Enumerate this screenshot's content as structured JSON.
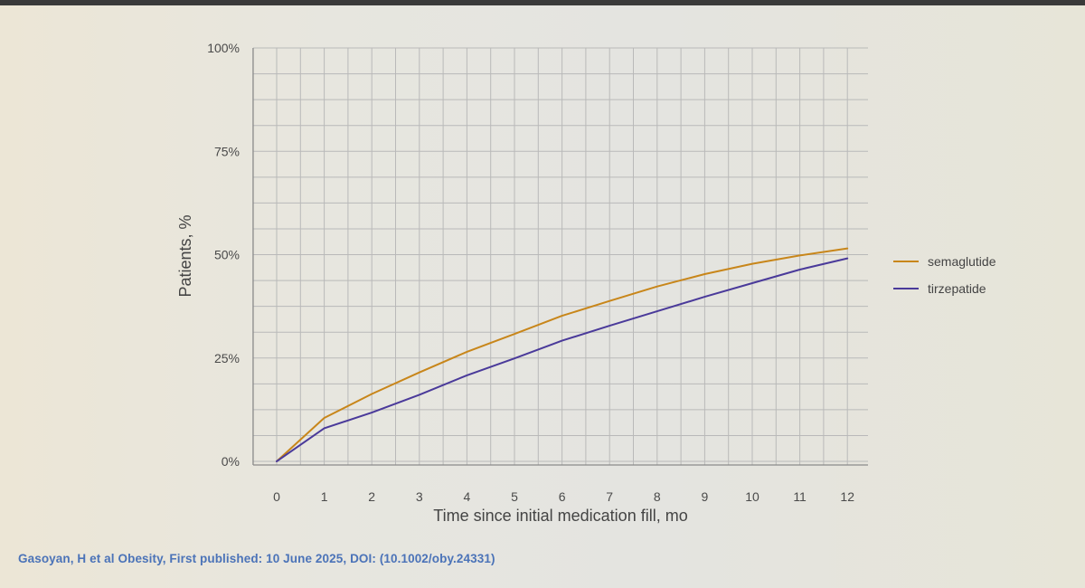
{
  "chart_data": {
    "type": "line",
    "xlabel": "Time since initial medication fill, mo",
    "ylabel": "Patients, %",
    "x": [
      0,
      1,
      2,
      3,
      4,
      5,
      6,
      7,
      8,
      9,
      10,
      11,
      12
    ],
    "x_tick_labels": [
      "0",
      "1",
      "2",
      "3",
      "4",
      "5",
      "6",
      "7",
      "8",
      "9",
      "10",
      "11",
      "12"
    ],
    "y_ticks": [
      0,
      25,
      50,
      75,
      100
    ],
    "y_tick_labels": [
      "0%",
      "25%",
      "50%",
      "75%",
      "100%"
    ],
    "xlim": [
      -0.5,
      12.6
    ],
    "ylim": [
      0,
      100
    ],
    "grid": true,
    "legend_position": "right",
    "series": [
      {
        "name": "semaglutide",
        "color": "#c8861a",
        "values": [
          0,
          10.5,
          16.3,
          21.5,
          26.5,
          30.8,
          35.2,
          38.8,
          42.3,
          45.3,
          47.8,
          49.8,
          51.5
        ]
      },
      {
        "name": "tirzepatide",
        "color": "#4a3a9a",
        "values": [
          0,
          8.0,
          11.8,
          16.1,
          20.8,
          24.9,
          29.2,
          32.8,
          36.3,
          39.8,
          43.1,
          46.4,
          49.1
        ]
      }
    ]
  },
  "citation": "Gasoyan, H et al Obesity, First published: 10 June 2025, DOI: (10.1002/oby.24331)"
}
